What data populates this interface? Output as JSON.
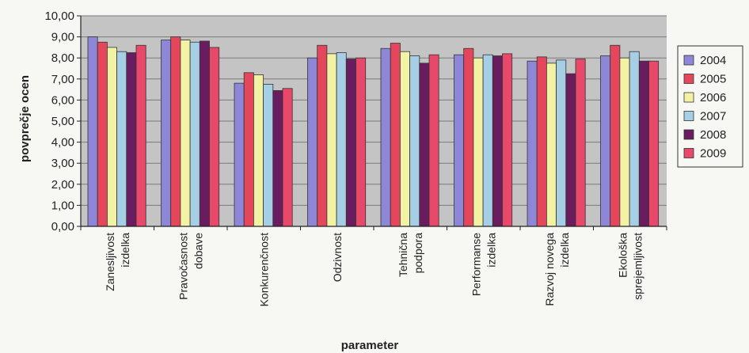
{
  "chart_data": {
    "type": "bar",
    "title": "",
    "xlabel": "parameter",
    "ylabel": "povprečje ocen",
    "ylim": [
      0,
      10
    ],
    "yticks": [
      "0,00",
      "1,00",
      "2,00",
      "3,00",
      "4,00",
      "5,00",
      "6,00",
      "7,00",
      "8,00",
      "9,00",
      "10,00"
    ],
    "grid": true,
    "legend": "right",
    "categories": [
      [
        "Zanesljivost",
        "izdelka"
      ],
      [
        "Pravočasnost",
        "dobave"
      ],
      [
        "Konkurenčnost"
      ],
      [
        "Odzivnost"
      ],
      [
        "Tehnična",
        "podpora"
      ],
      [
        "Performanse",
        "izdelka"
      ],
      [
        "Razvoj novega",
        "izdelka"
      ],
      [
        "Ekološka",
        "sprejemljivost"
      ]
    ],
    "series": [
      {
        "name": "2004",
        "color": "#8e86d6",
        "values": [
          9.0,
          8.85,
          6.8,
          8.0,
          8.45,
          8.15,
          7.85,
          8.1
        ]
      },
      {
        "name": "2005",
        "color": "#e4465c",
        "values": [
          8.75,
          9.0,
          7.3,
          8.6,
          8.7,
          8.45,
          8.05,
          8.6
        ]
      },
      {
        "name": "2006",
        "color": "#f2f2a4",
        "values": [
          8.5,
          8.85,
          7.2,
          8.2,
          8.3,
          8.0,
          7.75,
          8.0
        ]
      },
      {
        "name": "2007",
        "color": "#a6cfe6",
        "values": [
          8.3,
          8.75,
          6.75,
          8.25,
          8.1,
          8.15,
          7.9,
          8.3
        ]
      },
      {
        "name": "2008",
        "color": "#6a1d5e",
        "values": [
          8.25,
          8.8,
          6.45,
          7.95,
          7.75,
          8.1,
          7.25,
          7.85
        ]
      },
      {
        "name": "2009",
        "color": "#e8486a",
        "values": [
          8.6,
          8.5,
          6.55,
          8.0,
          8.15,
          8.2,
          7.95,
          7.85
        ]
      }
    ],
    "plot_background": "#c4c4c4"
  }
}
